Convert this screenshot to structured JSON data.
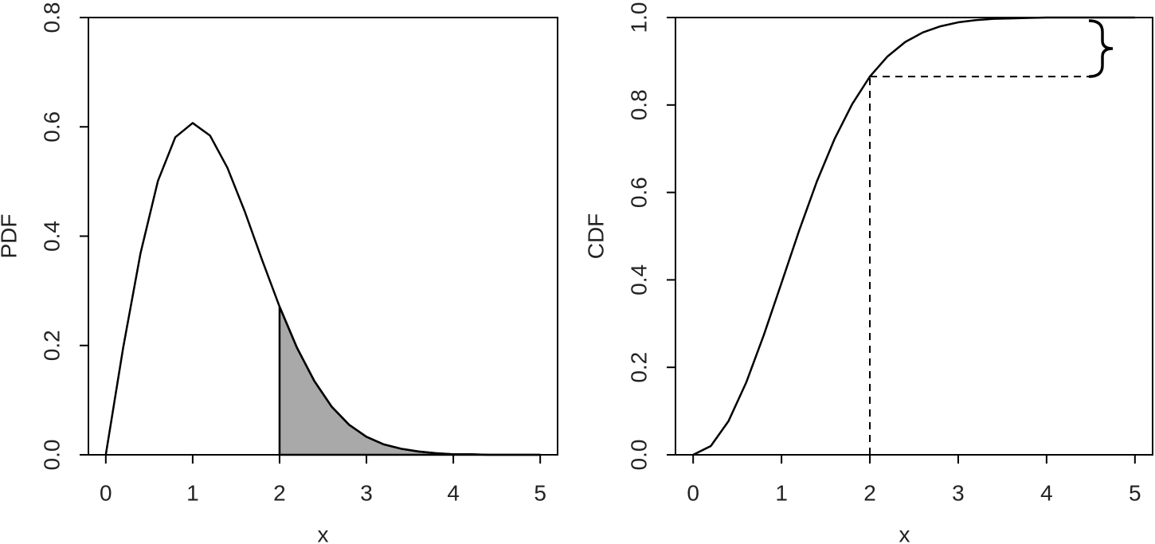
{
  "chart_data": [
    {
      "type": "line",
      "xlabel": "x",
      "ylabel": "PDF",
      "x": [
        0,
        0.2,
        0.4,
        0.6,
        0.8,
        1.0,
        1.2,
        1.4,
        1.6,
        1.8,
        2.0,
        2.2,
        2.4,
        2.6,
        2.8,
        3.0,
        3.2,
        3.4,
        3.6,
        3.8,
        4.0,
        4.2,
        4.4,
        4.6,
        4.8,
        5.0
      ],
      "values": [
        0,
        0.196,
        0.369,
        0.501,
        0.581,
        0.607,
        0.584,
        0.525,
        0.445,
        0.356,
        0.271,
        0.196,
        0.135,
        0.088,
        0.055,
        0.033,
        0.019,
        0.011,
        0.006,
        0.003,
        0.001,
        0.001,
        0,
        0,
        0,
        0
      ],
      "color": "#000000",
      "shade_from": 2,
      "shade_color": "#a9a9a9",
      "xlim": [
        -0.2,
        5.2
      ],
      "ylim": [
        0,
        0.8
      ],
      "xticks": [
        0,
        1,
        2,
        3,
        4,
        5
      ],
      "yticks": [
        {
          "value": 0,
          "label": "0.0"
        },
        0.2,
        0.4,
        0.6,
        0.8
      ]
    },
    {
      "type": "line",
      "xlabel": "x",
      "ylabel": "CDF",
      "x": [
        0,
        0.2,
        0.4,
        0.6,
        0.8,
        1.0,
        1.2,
        1.4,
        1.6,
        1.8,
        2.0,
        2.2,
        2.4,
        2.6,
        2.8,
        3.0,
        3.2,
        3.4,
        3.6,
        3.8,
        4.0,
        4.2,
        4.4,
        4.6,
        4.8,
        5.0
      ],
      "values": [
        0,
        0.02,
        0.077,
        0.165,
        0.274,
        0.393,
        0.513,
        0.625,
        0.722,
        0.802,
        0.865,
        0.911,
        0.944,
        0.966,
        0.98,
        0.989,
        0.994,
        0.997,
        0.998,
        0.999,
        1.0,
        1.0,
        1.0,
        1.0,
        1.0,
        1.0
      ],
      "color": "#000000",
      "reference_x": 2,
      "reference_y": 0.865,
      "xlim": [
        -0.2,
        5.2
      ],
      "ylim": [
        0,
        1
      ],
      "xticks": [
        0,
        1,
        2,
        3,
        4,
        5
      ],
      "yticks": [
        {
          "value": 0,
          "label": "0.0"
        },
        0.2,
        0.4,
        0.6,
        0.8,
        {
          "value": 1,
          "label": "1.0"
        }
      ]
    }
  ]
}
